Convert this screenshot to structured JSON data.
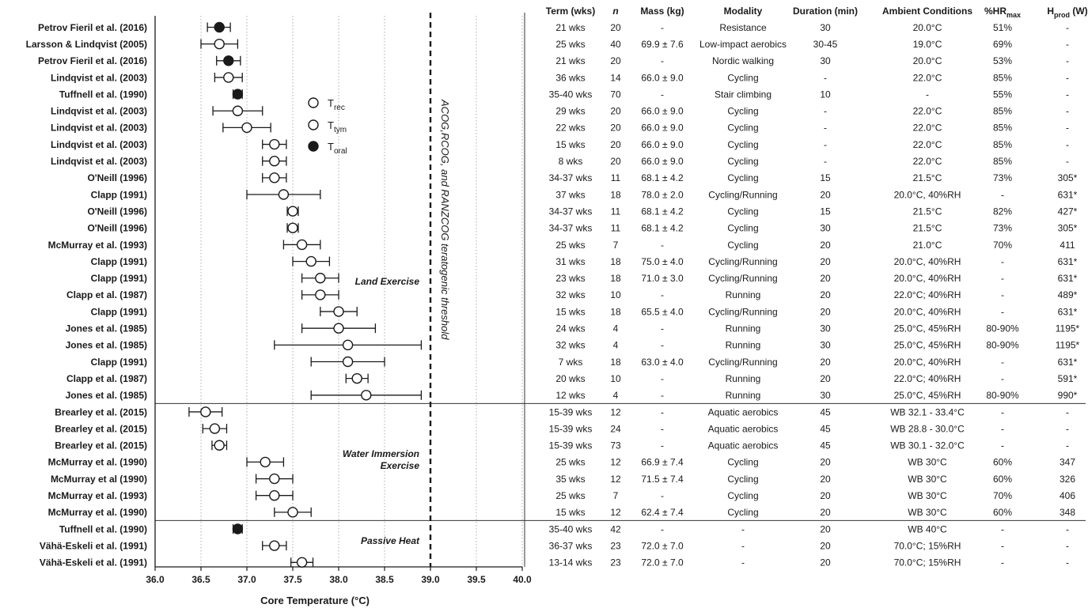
{
  "chart_data": {
    "type": "forest",
    "xlabel": "Core Temperature (°C)",
    "xlim": [
      36.0,
      40.0
    ],
    "x_ticks": [
      "36.0",
      "36.5",
      "37.0",
      "37.5",
      "38.0",
      "38.5",
      "39.0",
      "39.5",
      "40.0"
    ],
    "threshold": {
      "value": 39.0,
      "label": "ACOG,RCOG, and RANZCOG teratogenic threshold"
    },
    "legend": [
      {
        "marker": "open",
        "base": "T",
        "sub": "rec"
      },
      {
        "marker": "open",
        "base": "T",
        "sub": "tym"
      },
      {
        "marker": "filled",
        "base": "T",
        "sub": "oral"
      }
    ],
    "groups": [
      {
        "label": "Land Exercise",
        "start": 0,
        "end": 22
      },
      {
        "label": "Water Immersion",
        "label2": "Exercise",
        "start": 23,
        "end": 29
      },
      {
        "label": "Passive Heat",
        "start": 30,
        "end": 32
      }
    ],
    "columns": [
      "Term (wks)",
      "n",
      "Mass (kg)",
      "Modality",
      "Duration (min)",
      "Ambient Conditions",
      "%HR",
      "H"
    ],
    "column_subscripts": {
      "%HR": "max",
      "H": "prod"
    },
    "column_suffix": {
      "H": " (W)"
    },
    "studies": [
      {
        "study": "Petrov Fieril et al. (2016)",
        "value": 36.7,
        "low": 36.57,
        "high": 36.82,
        "marker": "filled",
        "term": "21 wks",
        "n": "20",
        "mass": "-",
        "modality": "Resistance",
        "duration": "30",
        "ambient": "20.0°C",
        "hr": "51%",
        "hprod": "-"
      },
      {
        "study": "Larsson & Lindqvist (2005)",
        "value": 36.7,
        "low": 36.5,
        "high": 36.9,
        "marker": "open",
        "term": "25 wks",
        "n": "40",
        "mass": "69.9 ± 7.6",
        "modality": "Low-impact aerobics",
        "duration": "30-45",
        "ambient": "19.0°C",
        "hr": "69%",
        "hprod": "-"
      },
      {
        "study": "Petrov Fieril et al. (2016)",
        "value": 36.8,
        "low": 36.67,
        "high": 36.93,
        "marker": "filled",
        "term": "21 wks",
        "n": "20",
        "mass": "-",
        "modality": "Nordic walking",
        "duration": "30",
        "ambient": "20.0°C",
        "hr": "53%",
        "hprod": "-"
      },
      {
        "study": "Lindqvist et al. (2003)",
        "value": 36.8,
        "low": 36.65,
        "high": 36.95,
        "marker": "open",
        "term": "36 wks",
        "n": "14",
        "mass": "66.0 ± 9.0",
        "modality": "Cycling",
        "duration": "-",
        "ambient": "22.0°C",
        "hr": "85%",
        "hprod": "-"
      },
      {
        "study": "Tuffnell et al. (1990)",
        "value": 36.9,
        "low": 36.85,
        "high": 36.95,
        "marker": "filled",
        "term": "35-40 wks",
        "n": "70",
        "mass": "-",
        "modality": "Stair climbing",
        "duration": "10",
        "ambient": "-",
        "hr": "55%",
        "hprod": "-"
      },
      {
        "study": "Lindqvist et al. (2003)",
        "value": 36.9,
        "low": 36.63,
        "high": 37.17,
        "marker": "open",
        "term": "29 wks",
        "n": "20",
        "mass": "66.0 ± 9.0",
        "modality": "Cycling",
        "duration": "-",
        "ambient": "22.0°C",
        "hr": "85%",
        "hprod": "-"
      },
      {
        "study": "Lindqvist et al. (2003)",
        "value": 37.0,
        "low": 36.74,
        "high": 37.26,
        "marker": "open",
        "term": "22 wks",
        "n": "20",
        "mass": "66.0 ± 9.0",
        "modality": "Cycling",
        "duration": "-",
        "ambient": "22.0°C",
        "hr": "85%",
        "hprod": "-"
      },
      {
        "study": "Lindqvist et al. (2003)",
        "value": 37.3,
        "low": 37.17,
        "high": 37.43,
        "marker": "open",
        "term": "15 wks",
        "n": "20",
        "mass": "66.0 ± 9.0",
        "modality": "Cycling",
        "duration": "-",
        "ambient": "22.0°C",
        "hr": "85%",
        "hprod": "-"
      },
      {
        "study": "Lindqvist et al. (2003)",
        "value": 37.3,
        "low": 37.17,
        "high": 37.43,
        "marker": "open",
        "term": "8 wks",
        "n": "20",
        "mass": "66.0 ± 9.0",
        "modality": "Cycling",
        "duration": "-",
        "ambient": "22.0°C",
        "hr": "85%",
        "hprod": "-"
      },
      {
        "study": "O'Neill (1996)",
        "value": 37.3,
        "low": 37.17,
        "high": 37.43,
        "marker": "open",
        "term": "34-37 wks",
        "n": "11",
        "mass": "68.1 ± 4.2",
        "modality": "Cycling",
        "duration": "15",
        "ambient": "21.5°C",
        "hr": "73%",
        "hprod": "305*"
      },
      {
        "study": "Clapp (1991)",
        "value": 37.4,
        "low": 37.0,
        "high": 37.8,
        "marker": "open",
        "term": "37 wks",
        "n": "18",
        "mass": "78.0 ± 2.0",
        "modality": "Cycling/Running",
        "duration": "20",
        "ambient": "20.0°C, 40%RH",
        "hr": "-",
        "hprod": "631*"
      },
      {
        "study": "O'Neill (1996)",
        "value": 37.5,
        "low": 37.44,
        "high": 37.56,
        "marker": "open",
        "term": "34-37 wks",
        "n": "11",
        "mass": "68.1 ± 4.2",
        "modality": "Cycling",
        "duration": "15",
        "ambient": "21.5°C",
        "hr": "82%",
        "hprod": "427*"
      },
      {
        "study": "O'Neill (1996)",
        "value": 37.5,
        "low": 37.44,
        "high": 37.56,
        "marker": "open",
        "term": "34-37 wks",
        "n": "11",
        "mass": "68.1 ± 4.2",
        "modality": "Cycling",
        "duration": "30",
        "ambient": "21.5°C",
        "hr": "73%",
        "hprod": "305*"
      },
      {
        "study": "McMurray et al. (1993)",
        "value": 37.6,
        "low": 37.4,
        "high": 37.8,
        "marker": "open",
        "term": "25 wks",
        "n": "7",
        "mass": "-",
        "modality": "Cycling",
        "duration": "20",
        "ambient": "21.0°C",
        "hr": "70%",
        "hprod": "411"
      },
      {
        "study": "Clapp (1991)",
        "value": 37.7,
        "low": 37.5,
        "high": 37.9,
        "marker": "open",
        "term": "31 wks",
        "n": "18",
        "mass": "75.0 ± 4.0",
        "modality": "Cycling/Running",
        "duration": "20",
        "ambient": "20.0°C, 40%RH",
        "hr": "-",
        "hprod": "631*"
      },
      {
        "study": "Clapp (1991)",
        "value": 37.8,
        "low": 37.6,
        "high": 38.0,
        "marker": "open",
        "term": "23 wks",
        "n": "18",
        "mass": "71.0 ± 3.0",
        "modality": "Cycling/Running",
        "duration": "20",
        "ambient": "20.0°C, 40%RH",
        "hr": "-",
        "hprod": "631*"
      },
      {
        "study": "Clapp et al. (1987)",
        "value": 37.8,
        "low": 37.6,
        "high": 38.0,
        "marker": "open",
        "term": "32 wks",
        "n": "10",
        "mass": "-",
        "modality": "Running",
        "duration": "20",
        "ambient": "22.0°C; 40%RH",
        "hr": "-",
        "hprod": "489*"
      },
      {
        "study": "Clapp (1991)",
        "value": 38.0,
        "low": 37.8,
        "high": 38.2,
        "marker": "open",
        "term": "15 wks",
        "n": "18",
        "mass": "65.5 ± 4.0",
        "modality": "Cycling/Running",
        "duration": "20",
        "ambient": "20.0°C, 40%RH",
        "hr": "-",
        "hprod": "631*"
      },
      {
        "study": "Jones et al. (1985)",
        "value": 38.0,
        "low": 37.6,
        "high": 38.4,
        "marker": "open",
        "term": "24 wks",
        "n": "4",
        "mass": "-",
        "modality": "Running",
        "duration": "30",
        "ambient": "25.0°C, 45%RH",
        "hr": "80-90%",
        "hprod": "1195*"
      },
      {
        "study": "Jones et al. (1985)",
        "value": 38.1,
        "low": 37.3,
        "high": 38.9,
        "marker": "open",
        "term": "32 wks",
        "n": "4",
        "mass": "-",
        "modality": "Running",
        "duration": "30",
        "ambient": "25.0°C, 45%RH",
        "hr": "80-90%",
        "hprod": "1195*"
      },
      {
        "study": "Clapp (1991)",
        "value": 38.1,
        "low": 37.7,
        "high": 38.5,
        "marker": "open",
        "term": "7 wks",
        "n": "18",
        "mass": "63.0 ± 4.0",
        "modality": "Cycling/Running",
        "duration": "20",
        "ambient": "20.0°C, 40%RH",
        "hr": "-",
        "hprod": "631*"
      },
      {
        "study": "Clapp et al. (1987)",
        "value": 38.2,
        "low": 38.08,
        "high": 38.32,
        "marker": "open",
        "term": "20 wks",
        "n": "10",
        "mass": "-",
        "modality": "Running",
        "duration": "20",
        "ambient": "22.0°C; 40%RH",
        "hr": "-",
        "hprod": "591*"
      },
      {
        "study": "Jones et al. (1985)",
        "value": 38.3,
        "low": 37.7,
        "high": 38.9,
        "marker": "open",
        "term": "12 wks",
        "n": "4",
        "mass": "-",
        "modality": "Running",
        "duration": "30",
        "ambient": "25.0°C, 45%RH",
        "hr": "80-90%",
        "hprod": "990*"
      },
      {
        "study": "Brearley et al. (2015)",
        "value": 36.55,
        "low": 36.37,
        "high": 36.73,
        "marker": "open",
        "term": "15-39 wks",
        "n": "12",
        "mass": "-",
        "modality": "Aquatic aerobics",
        "duration": "45",
        "ambient": "WB 32.1 - 33.4°C",
        "hr": "-",
        "hprod": "-"
      },
      {
        "study": "Brearley et al. (2015)",
        "value": 36.65,
        "low": 36.52,
        "high": 36.78,
        "marker": "open",
        "term": "15-39 wks",
        "n": "24",
        "mass": "-",
        "modality": "Aquatic aerobics",
        "duration": "45",
        "ambient": "WB 28.8 - 30.0°C",
        "hr": "-",
        "hprod": "-"
      },
      {
        "study": "Brearley et al. (2015)",
        "value": 36.7,
        "low": 36.62,
        "high": 36.78,
        "marker": "open",
        "term": "15-39 wks",
        "n": "73",
        "mass": "-",
        "modality": "Aquatic aerobics",
        "duration": "45",
        "ambient": "WB 30.1 - 32.0°C",
        "hr": "-",
        "hprod": "-"
      },
      {
        "study": "McMurray et al. (1990)",
        "value": 37.2,
        "low": 37.0,
        "high": 37.4,
        "marker": "open",
        "term": "25 wks",
        "n": "12",
        "mass": "66.9 ± 7.4",
        "modality": "Cycling",
        "duration": "20",
        "ambient": "WB 30°C",
        "hr": "60%",
        "hprod": "347"
      },
      {
        "study": "McMurray et al (1990)",
        "value": 37.3,
        "low": 37.1,
        "high": 37.5,
        "marker": "open",
        "term": "35 wks",
        "n": "12",
        "mass": "71.5 ± 7.4",
        "modality": "Cycling",
        "duration": "20",
        "ambient": "WB 30°C",
        "hr": "60%",
        "hprod": "326"
      },
      {
        "study": "McMurray et al. (1993)",
        "value": 37.3,
        "low": 37.1,
        "high": 37.5,
        "marker": "open",
        "term": "25 wks",
        "n": "7",
        "mass": "-",
        "modality": "Cycling",
        "duration": "20",
        "ambient": "WB 30°C",
        "hr": "70%",
        "hprod": "406"
      },
      {
        "study": "McMurray et al. (1990)",
        "value": 37.5,
        "low": 37.3,
        "high": 37.7,
        "marker": "open",
        "term": "15 wks",
        "n": "12",
        "mass": "62.4 ± 7.4",
        "modality": "Cycling",
        "duration": "20",
        "ambient": "WB 30°C",
        "hr": "60%",
        "hprod": "348"
      },
      {
        "study": "Tuffnell et al. (1990)",
        "value": 36.9,
        "low": 36.85,
        "high": 36.95,
        "marker": "filled",
        "term": "35-40 wks",
        "n": "42",
        "mass": "-",
        "modality": "-",
        "duration": "20",
        "ambient": "WB 40°C",
        "hr": "-",
        "hprod": "-"
      },
      {
        "study": "Vähä-Eskeli et al. (1991)",
        "value": 37.3,
        "low": 37.17,
        "high": 37.43,
        "marker": "open",
        "term": "36-37 wks",
        "n": "23",
        "mass": "72.0 ± 7.0",
        "modality": "-",
        "duration": "20",
        "ambient": "70.0°C; 15%RH",
        "hr": "-",
        "hprod": "-"
      },
      {
        "study": "Vähä-Eskeli et al. (1991)",
        "value": 37.6,
        "low": 37.48,
        "high": 37.72,
        "marker": "open",
        "term": "13-14 wks",
        "n": "23",
        "mass": "72.0 ± 7.0",
        "modality": "-",
        "duration": "20",
        "ambient": "70.0°C; 15%RH",
        "hr": "-",
        "hprod": "-"
      }
    ]
  }
}
